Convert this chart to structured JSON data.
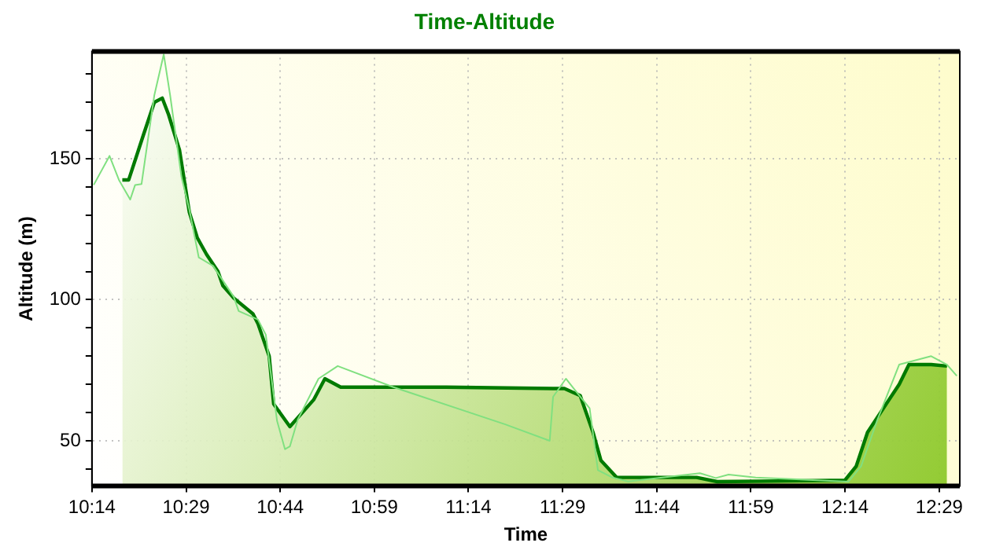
{
  "chart_data": {
    "type": "area",
    "title": "Time-Altitude",
    "xlabel": "Time",
    "ylabel": "Altitude (m)",
    "xlim": [
      10.2333,
      12.538
    ],
    "ylim": [
      34,
      188
    ],
    "xticks": [
      {
        "value": 10.2333,
        "label": "10:14"
      },
      {
        "value": 10.4833,
        "label": "10:29"
      },
      {
        "value": 10.7333,
        "label": "10:44"
      },
      {
        "value": 10.9833,
        "label": "10:59"
      },
      {
        "value": 11.2333,
        "label": "11:14"
      },
      {
        "value": 11.4833,
        "label": "11:29"
      },
      {
        "value": 11.7333,
        "label": "11:44"
      },
      {
        "value": 11.9833,
        "label": "11:59"
      },
      {
        "value": 12.2333,
        "label": "12:14"
      },
      {
        "value": 12.4833,
        "label": "12:29"
      }
    ],
    "yticks": [
      {
        "value": 40,
        "label": null
      },
      50,
      {
        "value": 60,
        "label": null
      },
      {
        "value": 70,
        "label": null
      },
      {
        "value": 80,
        "label": null
      },
      {
        "value": 90,
        "label": null
      },
      100,
      {
        "value": 110,
        "label": null
      },
      {
        "value": 120,
        "label": null
      },
      {
        "value": 130,
        "label": null
      },
      {
        "value": 140,
        "label": null
      },
      150,
      {
        "value": 160,
        "label": null
      },
      {
        "value": 170,
        "label": null
      },
      {
        "value": 180,
        "label": null
      }
    ],
    "grid": true,
    "legend": false,
    "marker": "none",
    "series": [
      {
        "type": "area",
        "color": "#007a00",
        "x": [
          10.314,
          10.331,
          10.369,
          10.399,
          10.42,
          10.437,
          10.466,
          10.492,
          10.513,
          10.538,
          10.568,
          10.581,
          10.61,
          10.661,
          10.674,
          10.704,
          10.716,
          10.759,
          10.822,
          10.852,
          10.894,
          11.174,
          11.458,
          11.488,
          11.53,
          11.564,
          11.585,
          11.627,
          11.839,
          11.894,
          12.233,
          12.263,
          12.293,
          12.377,
          12.403,
          12.462,
          12.504
        ],
        "values": [
          142.5,
          142.5,
          158,
          170,
          171.5,
          165.6,
          153,
          131,
          122,
          116,
          110,
          105,
          100.6,
          95,
          91.6,
          80,
          63,
          55,
          64.5,
          72,
          69,
          69,
          68.5,
          68.5,
          66,
          53,
          43,
          37,
          37,
          35.5,
          36,
          41,
          53,
          70,
          77,
          77,
          76.5
        ]
      },
      {
        "type": "line",
        "color": "#80e080",
        "x": [
          10.238,
          10.28,
          10.305,
          10.335,
          10.348,
          10.365,
          10.399,
          10.424,
          10.441,
          10.471,
          10.492,
          10.517,
          10.555,
          10.61,
          10.623,
          10.674,
          10.695,
          10.725,
          10.746,
          10.759,
          10.78,
          10.835,
          10.886,
          11.034,
          11.331,
          11.449,
          11.458,
          11.492,
          11.513,
          11.555,
          11.577,
          11.615,
          11.657,
          11.848,
          11.89,
          11.924,
          11.996,
          12.242,
          12.276,
          12.318,
          12.377,
          12.462,
          12.504,
          12.53
        ],
        "values": [
          140.7,
          151,
          142.5,
          135.5,
          140.7,
          141,
          172.5,
          187,
          172.5,
          143.6,
          132,
          115,
          112,
          101,
          96,
          93,
          87.6,
          57,
          47,
          48,
          57.5,
          72,
          76.5,
          69,
          55.8,
          50,
          65.6,
          72,
          68.5,
          61.5,
          39.6,
          37,
          35.6,
          38.5,
          36.8,
          38,
          37,
          35.5,
          41,
          57,
          77,
          80,
          77,
          73
        ]
      }
    ]
  }
}
